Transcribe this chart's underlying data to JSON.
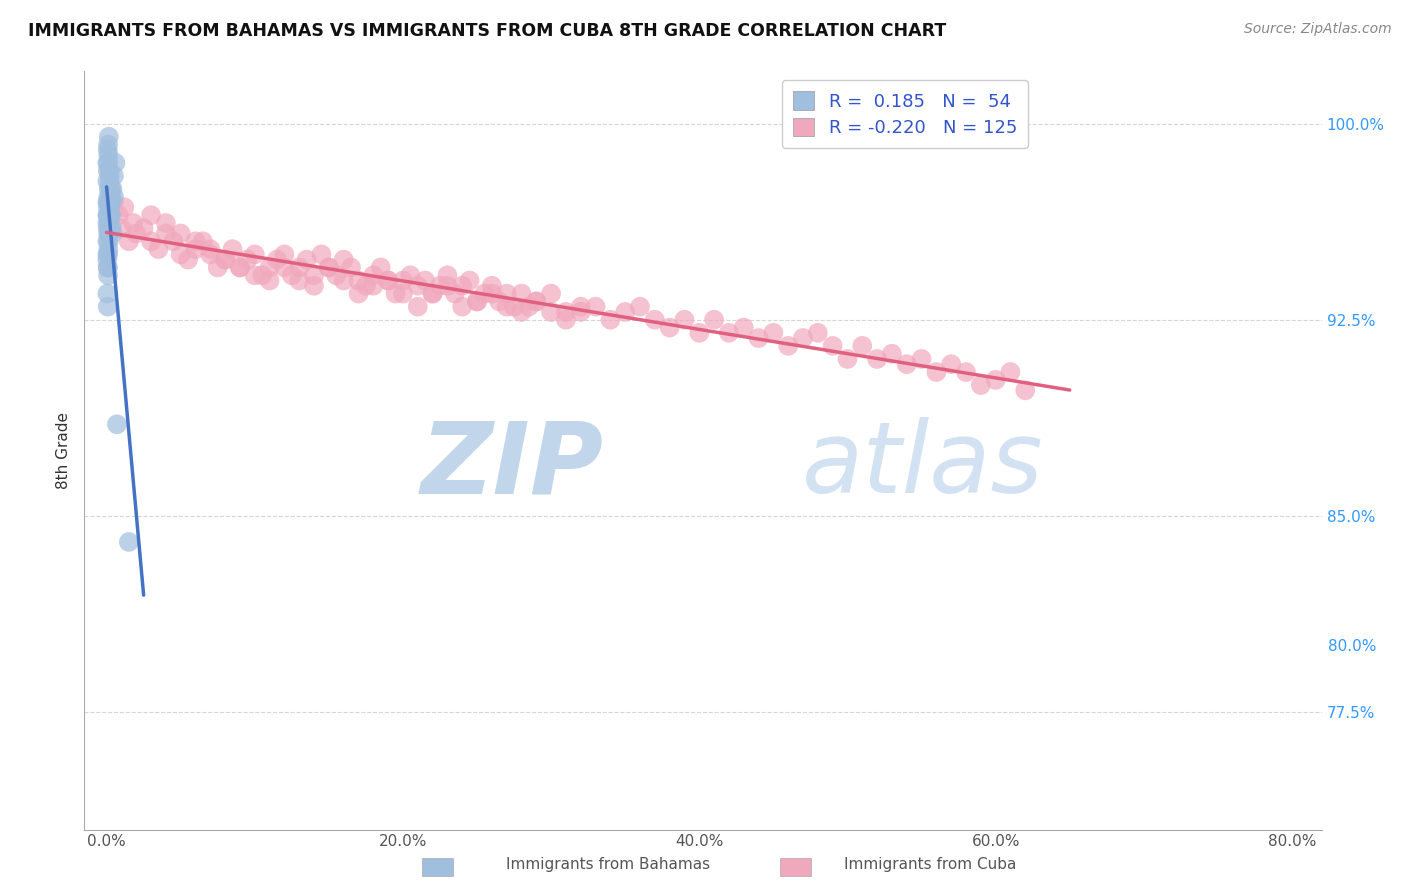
{
  "title": "IMMIGRANTS FROM BAHAMAS VS IMMIGRANTS FROM CUBA 8TH GRADE CORRELATION CHART",
  "source": "Source: ZipAtlas.com",
  "ylabel": "8th Grade",
  "x_tick_vals": [
    0,
    20,
    40,
    60,
    80
  ],
  "x_tick_labels": [
    "0.0%",
    "20.0%",
    "40.0%",
    "60.0%",
    "80.0%"
  ],
  "y_tick_vals": [
    77.5,
    85.0,
    92.5,
    100.0
  ],
  "y_tick_labels_right": [
    "77.5%",
    "85.0%",
    "92.5%",
    "100.0%"
  ],
  "ylim": [
    73.0,
    102.0
  ],
  "xlim": [
    -1.5,
    82.0
  ],
  "legend_bahamas_R": "0.185",
  "legend_bahamas_N": "54",
  "legend_cuba_R": "-0.220",
  "legend_cuba_N": "125",
  "color_bahamas": "#a0bede",
  "color_cuba": "#f0a8bc",
  "color_line_bahamas": "#4472c4",
  "color_line_cuba": "#e06080",
  "background_color": "#ffffff",
  "grid_color": "#cccccc",
  "title_color": "#111111",
  "source_color": "#888888",
  "legend_color": "#3355cc",
  "watermark_color": "#d0e0f0",
  "bahamas_x": [
    0.05,
    0.08,
    0.1,
    0.12,
    0.15,
    0.18,
    0.2,
    0.22,
    0.25,
    0.28,
    0.05,
    0.08,
    0.1,
    0.12,
    0.05,
    0.08,
    0.1,
    0.05,
    0.08,
    0.1,
    0.05,
    0.08,
    0.12,
    0.15,
    0.18,
    0.22,
    0.3,
    0.35,
    0.4,
    0.5,
    0.05,
    0.08,
    0.1,
    0.05,
    0.12,
    0.15,
    0.18,
    0.22,
    0.28,
    0.35,
    0.05,
    0.08,
    0.1,
    0.15,
    0.2,
    0.25,
    0.3,
    0.4,
    0.5,
    0.6,
    0.05,
    0.08,
    0.7,
    1.5
  ],
  "bahamas_y": [
    98.5,
    99.0,
    99.2,
    98.8,
    99.5,
    98.2,
    97.8,
    98.0,
    97.5,
    97.2,
    96.5,
    96.0,
    95.8,
    95.2,
    94.8,
    94.5,
    95.0,
    96.2,
    96.8,
    97.0,
    95.5,
    96.5,
    97.2,
    97.5,
    97.0,
    96.8,
    96.5,
    96.0,
    95.8,
    97.2,
    97.8,
    98.2,
    98.5,
    97.0,
    96.5,
    96.2,
    95.8,
    96.0,
    96.5,
    97.0,
    95.0,
    94.5,
    94.2,
    95.5,
    96.0,
    96.5,
    97.0,
    97.5,
    98.0,
    98.5,
    93.5,
    93.0,
    88.5,
    84.0
  ],
  "cuba_x": [
    0.3,
    0.5,
    0.8,
    1.0,
    1.2,
    1.5,
    1.8,
    2.0,
    2.5,
    3.0,
    3.5,
    4.0,
    4.5,
    5.0,
    5.5,
    6.0,
    6.5,
    7.0,
    7.5,
    8.0,
    8.5,
    9.0,
    9.5,
    10.0,
    10.5,
    11.0,
    11.5,
    12.0,
    12.5,
    13.0,
    13.5,
    14.0,
    14.5,
    15.0,
    15.5,
    16.0,
    16.5,
    17.0,
    17.5,
    18.0,
    18.5,
    19.0,
    19.5,
    20.0,
    20.5,
    21.0,
    21.5,
    22.0,
    22.5,
    23.0,
    23.5,
    24.0,
    24.5,
    25.0,
    25.5,
    26.0,
    26.5,
    27.0,
    27.5,
    28.0,
    28.5,
    29.0,
    30.0,
    31.0,
    32.0,
    33.0,
    34.0,
    35.0,
    36.0,
    37.0,
    38.0,
    39.0,
    40.0,
    41.0,
    42.0,
    43.0,
    44.0,
    45.0,
    46.0,
    47.0,
    48.0,
    49.0,
    50.0,
    51.0,
    52.0,
    53.0,
    54.0,
    55.0,
    56.0,
    57.0,
    58.0,
    59.0,
    60.0,
    61.0,
    62.0,
    3.0,
    4.0,
    5.0,
    6.0,
    7.0,
    8.0,
    9.0,
    10.0,
    11.0,
    12.0,
    13.0,
    14.0,
    15.0,
    16.0,
    17.0,
    18.0,
    19.0,
    20.0,
    21.0,
    22.0,
    23.0,
    24.0,
    25.0,
    26.0,
    27.0,
    28.0,
    29.0,
    30.0,
    31.0,
    32.0
  ],
  "cuba_y": [
    97.5,
    97.0,
    96.5,
    96.0,
    96.8,
    95.5,
    96.2,
    95.8,
    96.0,
    95.5,
    95.2,
    95.8,
    95.5,
    95.0,
    94.8,
    95.2,
    95.5,
    95.0,
    94.5,
    94.8,
    95.2,
    94.5,
    94.8,
    95.0,
    94.2,
    94.5,
    94.8,
    95.0,
    94.2,
    94.5,
    94.8,
    94.2,
    95.0,
    94.5,
    94.2,
    94.8,
    94.5,
    94.0,
    93.8,
    94.2,
    94.5,
    94.0,
    93.5,
    94.0,
    94.2,
    93.8,
    94.0,
    93.5,
    93.8,
    94.2,
    93.5,
    93.8,
    94.0,
    93.2,
    93.5,
    93.8,
    93.2,
    93.5,
    93.0,
    93.5,
    93.0,
    93.2,
    92.8,
    92.5,
    92.8,
    93.0,
    92.5,
    92.8,
    93.0,
    92.5,
    92.2,
    92.5,
    92.0,
    92.5,
    92.0,
    92.2,
    91.8,
    92.0,
    91.5,
    91.8,
    92.0,
    91.5,
    91.0,
    91.5,
    91.0,
    91.2,
    90.8,
    91.0,
    90.5,
    90.8,
    90.5,
    90.0,
    90.2,
    90.5,
    89.8,
    96.5,
    96.2,
    95.8,
    95.5,
    95.2,
    94.8,
    94.5,
    94.2,
    94.0,
    94.5,
    94.0,
    93.8,
    94.5,
    94.0,
    93.5,
    93.8,
    94.0,
    93.5,
    93.0,
    93.5,
    93.8,
    93.0,
    93.2,
    93.5,
    93.0,
    92.8,
    93.2,
    93.5,
    92.8,
    93.0
  ]
}
